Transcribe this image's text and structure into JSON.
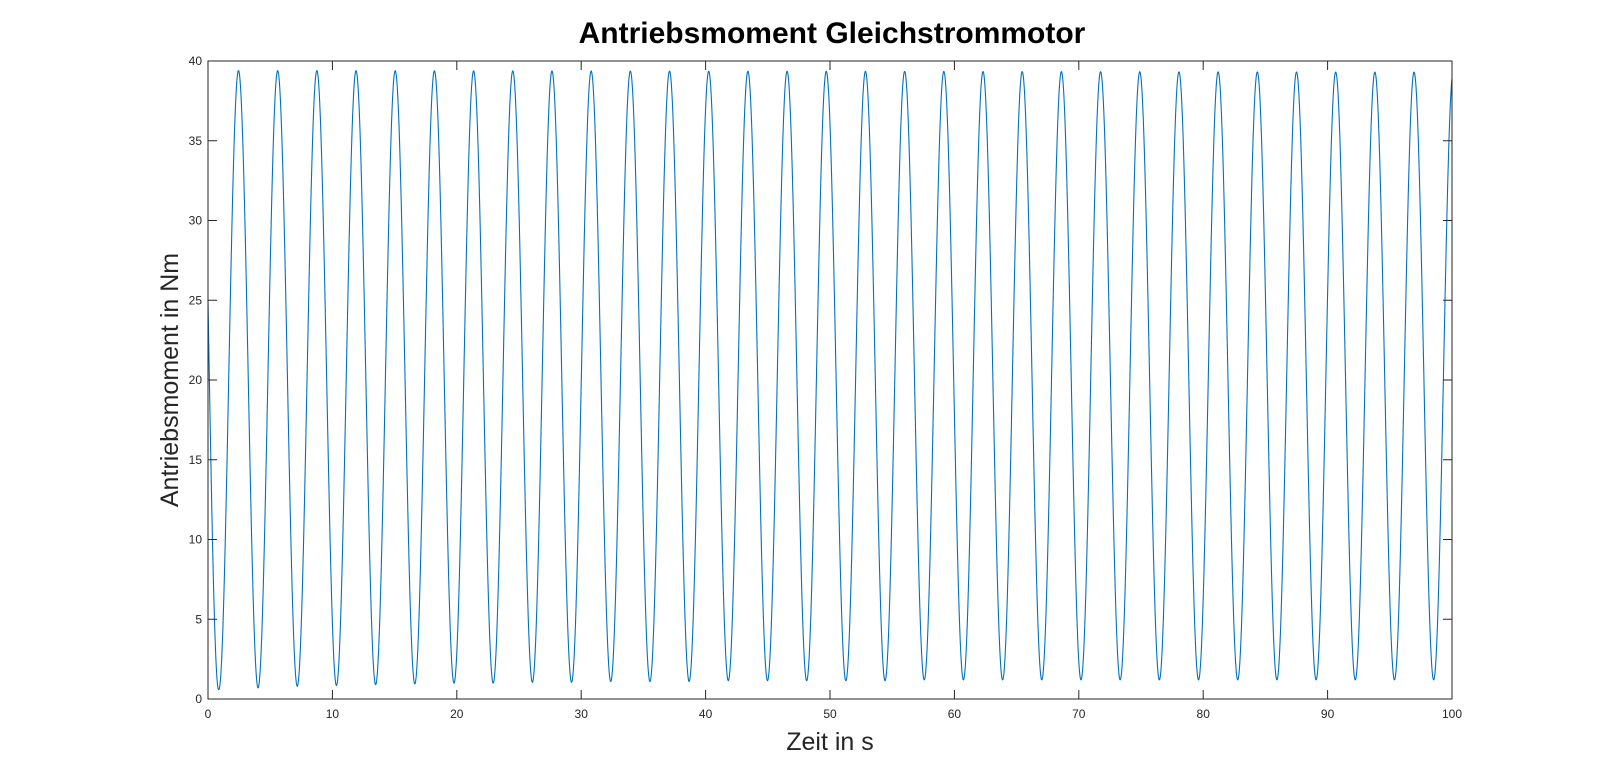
{
  "chart_data": {
    "type": "line",
    "title": "Antriebsmoment Gleichstrommotor",
    "xlabel": "Zeit in s",
    "ylabel": "Antriebsmoment in Nm",
    "xlim": [
      0,
      100
    ],
    "ylim": [
      0,
      40
    ],
    "xticks": [
      0,
      10,
      20,
      30,
      40,
      50,
      60,
      70,
      80,
      90,
      100
    ],
    "yticks": [
      0,
      5,
      10,
      15,
      20,
      25,
      30,
      35,
      40
    ],
    "grid": false,
    "legend": "none",
    "series": [
      {
        "color": "#0072BD",
        "period": 3.15,
        "first_peak_x": 2.45,
        "peaks": {
          "x": [
            2.45,
            97.0
          ],
          "y": [
            39.4,
            39.3
          ]
        },
        "troughs": {
          "x": [
            0.85,
            4.0,
            7.15,
            10.3,
            13.45,
            16.6,
            19.75,
            22.9,
            26.05,
            29.2,
            32.35,
            35.5,
            38.65,
            41.8,
            44.95,
            48.1,
            51.25,
            54.4,
            57.55,
            60.7,
            63.85,
            67.0,
            70.15,
            73.3,
            76.45,
            79.6,
            82.75,
            85.9,
            89.05,
            92.2,
            95.35,
            98.5
          ],
          "y": [
            0.6,
            0.7,
            0.8,
            0.85,
            0.9,
            0.95,
            1.0,
            1.0,
            1.05,
            1.05,
            1.1,
            1.1,
            1.1,
            1.15,
            1.15,
            1.15,
            1.15,
            1.15,
            1.2,
            1.2,
            1.2,
            1.2,
            1.2,
            1.2,
            1.2,
            1.2,
            1.2,
            1.2,
            1.2,
            1.2,
            1.2,
            1.2
          ]
        },
        "start": {
          "x": 0,
          "y": 25
        },
        "end": {
          "x": 100,
          "y": 39
        }
      }
    ]
  }
}
